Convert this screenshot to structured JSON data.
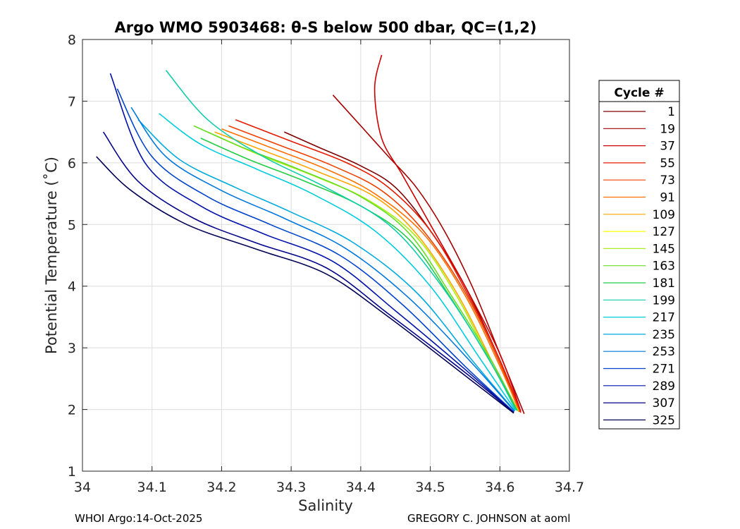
{
  "chart_data": {
    "type": "line",
    "title": "Argo WMO 5903468: θ-S below 500 dbar,  QC=(1,2)",
    "xlabel": "Salinity",
    "ylabel": "Potential Temperature (˚C)",
    "xlim": [
      34,
      34.7
    ],
    "ylim": [
      1,
      8
    ],
    "xticks": [
      "34",
      "34.1",
      "34.2",
      "34.3",
      "34.4",
      "34.5",
      "34.6",
      "34.7"
    ],
    "yticks": [
      "1",
      "2",
      "3",
      "4",
      "5",
      "6",
      "7",
      "8"
    ],
    "grid": true,
    "legend": {
      "title": "Cycle #",
      "placement": "right",
      "entries": [
        "1",
        "19",
        "37",
        "55",
        "73",
        "91",
        "109",
        "127",
        "145",
        "163",
        "181",
        "199",
        "217",
        "235",
        "253",
        "271",
        "289",
        "307",
        "325"
      ]
    },
    "series": [
      {
        "name": "1",
        "color": "#7f0000",
        "s": [
          34.29,
          34.34,
          34.4,
          34.45,
          34.5,
          34.55,
          34.6,
          34.63
        ],
        "t": [
          6.5,
          6.25,
          5.95,
          5.6,
          4.9,
          4.0,
          2.8,
          1.95
        ]
      },
      {
        "name": "19",
        "color": "#a50000",
        "s": [
          34.36,
          34.4,
          34.44,
          34.48,
          34.52,
          34.56,
          34.6,
          34.635
        ],
        "t": [
          7.1,
          6.6,
          6.1,
          5.6,
          4.9,
          4.0,
          2.9,
          1.93
        ]
      },
      {
        "name": "37",
        "color": "#cc0000",
        "s": [
          34.43,
          34.42,
          34.43,
          34.46,
          34.5,
          34.55,
          34.6,
          34.63
        ],
        "t": [
          7.75,
          7.2,
          6.4,
          5.8,
          5.0,
          4.0,
          2.9,
          1.97
        ]
      },
      {
        "name": "55",
        "color": "#e51a00",
        "s": [
          34.22,
          34.3,
          34.38,
          34.44,
          34.5,
          34.55,
          34.6,
          34.63
        ],
        "t": [
          6.7,
          6.35,
          6.0,
          5.6,
          4.9,
          3.95,
          2.8,
          1.95
        ]
      },
      {
        "name": "73",
        "color": "#f04000",
        "s": [
          34.21,
          34.28,
          34.36,
          34.43,
          34.49,
          34.55,
          34.6,
          34.628
        ],
        "t": [
          6.6,
          6.3,
          5.95,
          5.55,
          4.9,
          3.9,
          2.75,
          1.96
        ]
      },
      {
        "name": "91",
        "color": "#ff7000",
        "s": [
          34.2,
          34.27,
          34.35,
          34.42,
          34.49,
          34.55,
          34.6,
          34.628
        ],
        "t": [
          6.55,
          6.25,
          5.9,
          5.5,
          4.85,
          3.85,
          2.7,
          1.97
        ]
      },
      {
        "name": "109",
        "color": "#ffa500",
        "s": [
          34.19,
          34.26,
          34.34,
          34.42,
          34.48,
          34.54,
          34.59,
          34.627
        ],
        "t": [
          6.5,
          6.2,
          5.85,
          5.45,
          4.85,
          3.85,
          2.75,
          1.97
        ]
      },
      {
        "name": "127",
        "color": "#ffff00",
        "s": [
          34.19,
          34.25,
          34.33,
          34.41,
          34.48,
          34.54,
          34.59,
          34.626
        ],
        "t": [
          6.45,
          6.15,
          5.8,
          5.4,
          4.8,
          3.8,
          2.7,
          1.98
        ]
      },
      {
        "name": "145",
        "color": "#aaee22",
        "s": [
          34.18,
          34.25,
          34.33,
          34.41,
          34.48,
          34.54,
          34.59,
          34.626
        ],
        "t": [
          6.5,
          6.15,
          5.8,
          5.4,
          4.8,
          3.8,
          2.7,
          1.98
        ]
      },
      {
        "name": "163",
        "color": "#66dd22",
        "s": [
          34.16,
          34.23,
          34.31,
          34.4,
          34.47,
          34.53,
          34.59,
          34.625
        ],
        "t": [
          6.6,
          6.25,
          5.9,
          5.45,
          4.85,
          3.85,
          2.75,
          1.98
        ]
      },
      {
        "name": "181",
        "color": "#22cc44",
        "s": [
          34.17,
          34.24,
          34.32,
          34.4,
          34.47,
          34.53,
          34.59,
          34.625
        ],
        "t": [
          6.4,
          6.05,
          5.7,
          5.3,
          4.75,
          3.8,
          2.7,
          1.98
        ]
      },
      {
        "name": "199",
        "color": "#11ccaa",
        "s": [
          34.12,
          34.18,
          34.26,
          34.35,
          34.44,
          34.51,
          34.58,
          34.623
        ],
        "t": [
          7.5,
          6.7,
          6.1,
          5.6,
          5.0,
          4.1,
          2.9,
          1.99
        ]
      },
      {
        "name": "217",
        "color": "#00ccdd",
        "s": [
          34.11,
          34.17,
          34.25,
          34.33,
          34.42,
          34.5,
          34.57,
          34.622
        ],
        "t": [
          6.8,
          6.3,
          5.9,
          5.5,
          4.9,
          4.0,
          2.85,
          1.99
        ]
      },
      {
        "name": "235",
        "color": "#00aadd",
        "s": [
          34.08,
          34.14,
          34.22,
          34.3,
          34.39,
          34.48,
          34.56,
          34.621
        ],
        "t": [
          6.7,
          6.05,
          5.6,
          5.2,
          4.7,
          3.9,
          2.8,
          1.98
        ]
      },
      {
        "name": "253",
        "color": "#0077dd",
        "s": [
          34.07,
          34.12,
          34.2,
          34.29,
          34.38,
          34.47,
          34.56,
          34.621
        ],
        "t": [
          6.9,
          6.1,
          5.55,
          5.1,
          4.6,
          3.8,
          2.75,
          1.97
        ]
      },
      {
        "name": "271",
        "color": "#0044cc",
        "s": [
          34.05,
          34.1,
          34.18,
          34.27,
          34.37,
          34.46,
          34.55,
          34.62
        ],
        "t": [
          7.2,
          6.1,
          5.45,
          5.0,
          4.5,
          3.7,
          2.7,
          1.96
        ]
      },
      {
        "name": "289",
        "color": "#0011aa",
        "s": [
          34.04,
          34.09,
          34.17,
          34.26,
          34.36,
          34.45,
          34.55,
          34.62
        ],
        "t": [
          7.45,
          6.0,
          5.3,
          4.85,
          4.4,
          3.6,
          2.65,
          1.95
        ]
      },
      {
        "name": "307",
        "color": "#000088",
        "s": [
          34.03,
          34.08,
          34.16,
          34.25,
          34.35,
          34.44,
          34.55,
          34.62
        ],
        "t": [
          6.5,
          5.7,
          5.1,
          4.7,
          4.3,
          3.55,
          2.6,
          1.95
        ]
      },
      {
        "name": "325",
        "color": "#000055",
        "s": [
          34.02,
          34.07,
          34.15,
          34.25,
          34.35,
          34.44,
          34.55,
          34.62
        ],
        "t": [
          6.1,
          5.55,
          5.0,
          4.6,
          4.2,
          3.5,
          2.55,
          1.94
        ]
      }
    ]
  },
  "footer": {
    "left": "WHOI Argo:14-Oct-2025",
    "right": "GREGORY C. JOHNSON at aoml"
  }
}
